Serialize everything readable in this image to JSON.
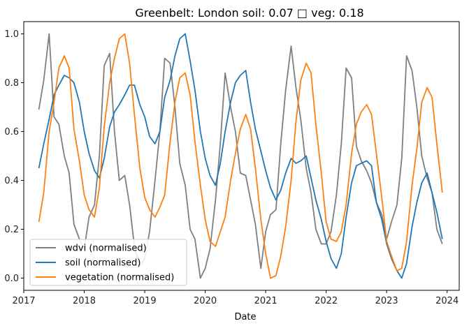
{
  "chart_data": {
    "type": "line",
    "title": "Greenbelt: London soil: 0.07 □ veg: 0.18",
    "xlabel": "Date",
    "ylabel": "",
    "xlim": [
      2017.0,
      2024.2
    ],
    "ylim": [
      -0.05,
      1.05
    ],
    "xticks": [
      2017,
      2018,
      2019,
      2020,
      2021,
      2022,
      2023,
      2024
    ],
    "xtick_labels": [
      "2017",
      "2018",
      "2019",
      "2020",
      "2021",
      "2022",
      "2023",
      "2024"
    ],
    "yticks": [
      0.0,
      0.2,
      0.4,
      0.6,
      0.8,
      1.0
    ],
    "ytick_labels": [
      "0.0",
      "0.2",
      "0.4",
      "0.6",
      "0.8",
      "1.0"
    ],
    "grid": false,
    "legend_position": "lower-left",
    "series": [
      {
        "name": "wdvi (normalised)",
        "color": "#7f7f7f",
        "x": [
          2017.25,
          2017.33,
          2017.42,
          2017.5,
          2017.58,
          2017.67,
          2017.75,
          2017.83,
          2017.92,
          2018.0,
          2018.08,
          2018.17,
          2018.25,
          2018.33,
          2018.42,
          2018.5,
          2018.58,
          2018.67,
          2018.75,
          2018.83,
          2018.92,
          2019.0,
          2019.08,
          2019.17,
          2019.25,
          2019.33,
          2019.42,
          2019.5,
          2019.58,
          2019.67,
          2019.75,
          2019.83,
          2019.92,
          2020.0,
          2020.08,
          2020.17,
          2020.25,
          2020.33,
          2020.42,
          2020.5,
          2020.58,
          2020.67,
          2020.75,
          2020.83,
          2020.92,
          2021.0,
          2021.08,
          2021.17,
          2021.25,
          2021.33,
          2021.42,
          2021.5,
          2021.58,
          2021.67,
          2021.75,
          2021.83,
          2021.92,
          2022.0,
          2022.08,
          2022.17,
          2022.25,
          2022.33,
          2022.42,
          2022.5,
          2022.58,
          2022.67,
          2022.75,
          2022.83,
          2022.92,
          2023.0,
          2023.08,
          2023.17,
          2023.25,
          2023.33,
          2023.42,
          2023.5,
          2023.58,
          2023.67,
          2023.75,
          2023.83,
          2023.92
        ],
        "y": [
          0.69,
          0.81,
          1.0,
          0.66,
          0.63,
          0.5,
          0.43,
          0.22,
          0.16,
          0.12,
          0.25,
          0.3,
          0.5,
          0.87,
          0.92,
          0.6,
          0.4,
          0.42,
          0.3,
          0.13,
          0.05,
          0.08,
          0.19,
          0.4,
          0.6,
          0.9,
          0.88,
          0.7,
          0.47,
          0.38,
          0.2,
          0.16,
          0.0,
          0.04,
          0.12,
          0.32,
          0.55,
          0.84,
          0.7,
          0.6,
          0.43,
          0.42,
          0.32,
          0.22,
          0.04,
          0.19,
          0.26,
          0.28,
          0.55,
          0.77,
          0.95,
          0.78,
          0.65,
          0.45,
          0.35,
          0.2,
          0.14,
          0.14,
          0.19,
          0.34,
          0.55,
          0.86,
          0.82,
          0.54,
          0.48,
          0.44,
          0.39,
          0.31,
          0.26,
          0.16,
          0.23,
          0.3,
          0.49,
          0.91,
          0.85,
          0.7,
          0.5,
          0.41,
          0.35,
          0.2,
          0.14
        ]
      },
      {
        "name": "soil (normalised)",
        "color": "#1f77b4",
        "x": [
          2017.25,
          2017.33,
          2017.42,
          2017.5,
          2017.58,
          2017.67,
          2017.75,
          2017.83,
          2017.92,
          2018.0,
          2018.08,
          2018.17,
          2018.25,
          2018.33,
          2018.42,
          2018.5,
          2018.58,
          2018.67,
          2018.75,
          2018.83,
          2018.92,
          2019.0,
          2019.08,
          2019.17,
          2019.25,
          2019.33,
          2019.42,
          2019.5,
          2019.58,
          2019.67,
          2019.75,
          2019.83,
          2019.92,
          2020.0,
          2020.08,
          2020.17,
          2020.25,
          2020.33,
          2020.42,
          2020.5,
          2020.58,
          2020.67,
          2020.75,
          2020.83,
          2020.92,
          2021.0,
          2021.08,
          2021.17,
          2021.25,
          2021.33,
          2021.42,
          2021.5,
          2021.58,
          2021.67,
          2021.75,
          2021.83,
          2021.92,
          2022.0,
          2022.08,
          2022.17,
          2022.25,
          2022.33,
          2022.42,
          2022.5,
          2022.58,
          2022.67,
          2022.75,
          2022.83,
          2022.92,
          2023.0,
          2023.08,
          2023.17,
          2023.25,
          2023.33,
          2023.42,
          2023.5,
          2023.58,
          2023.67,
          2023.75,
          2023.83,
          2023.92
        ],
        "y": [
          0.45,
          0.55,
          0.65,
          0.75,
          0.79,
          0.83,
          0.82,
          0.8,
          0.72,
          0.6,
          0.51,
          0.44,
          0.41,
          0.49,
          0.62,
          0.68,
          0.71,
          0.75,
          0.79,
          0.79,
          0.71,
          0.66,
          0.58,
          0.55,
          0.6,
          0.74,
          0.81,
          0.91,
          0.98,
          1.0,
          0.89,
          0.77,
          0.6,
          0.49,
          0.42,
          0.38,
          0.47,
          0.6,
          0.72,
          0.8,
          0.83,
          0.85,
          0.72,
          0.61,
          0.52,
          0.44,
          0.37,
          0.32,
          0.36,
          0.43,
          0.49,
          0.47,
          0.48,
          0.5,
          0.41,
          0.32,
          0.24,
          0.15,
          0.08,
          0.04,
          0.1,
          0.25,
          0.39,
          0.46,
          0.47,
          0.48,
          0.46,
          0.31,
          0.24,
          0.14,
          0.08,
          0.03,
          0.0,
          0.06,
          0.21,
          0.31,
          0.39,
          0.43,
          0.35,
          0.27,
          0.16
        ]
      },
      {
        "name": "vegetation (normalised)",
        "color": "#ff7f0e",
        "x": [
          2017.25,
          2017.33,
          2017.42,
          2017.5,
          2017.58,
          2017.67,
          2017.75,
          2017.83,
          2017.92,
          2018.0,
          2018.08,
          2018.17,
          2018.25,
          2018.33,
          2018.42,
          2018.5,
          2018.58,
          2018.67,
          2018.75,
          2018.83,
          2018.92,
          2019.0,
          2019.08,
          2019.17,
          2019.25,
          2019.33,
          2019.42,
          2019.5,
          2019.58,
          2019.67,
          2019.75,
          2019.83,
          2019.92,
          2020.0,
          2020.08,
          2020.17,
          2020.25,
          2020.33,
          2020.42,
          2020.5,
          2020.58,
          2020.67,
          2020.75,
          2020.83,
          2020.92,
          2021.0,
          2021.08,
          2021.17,
          2021.25,
          2021.33,
          2021.42,
          2021.5,
          2021.58,
          2021.67,
          2021.75,
          2021.83,
          2021.92,
          2022.0,
          2022.08,
          2022.17,
          2022.25,
          2022.33,
          2022.42,
          2022.5,
          2022.58,
          2022.67,
          2022.75,
          2022.83,
          2022.92,
          2023.0,
          2023.08,
          2023.17,
          2023.25,
          2023.33,
          2023.42,
          2023.5,
          2023.58,
          2023.67,
          2023.75,
          2023.83,
          2023.92
        ],
        "y": [
          0.23,
          0.35,
          0.6,
          0.72,
          0.86,
          0.91,
          0.86,
          0.61,
          0.48,
          0.34,
          0.28,
          0.25,
          0.37,
          0.62,
          0.8,
          0.9,
          0.98,
          1.0,
          0.88,
          0.67,
          0.45,
          0.33,
          0.28,
          0.25,
          0.29,
          0.34,
          0.56,
          0.72,
          0.82,
          0.84,
          0.75,
          0.56,
          0.38,
          0.24,
          0.15,
          0.13,
          0.19,
          0.25,
          0.4,
          0.51,
          0.61,
          0.67,
          0.61,
          0.45,
          0.24,
          0.1,
          0.0,
          0.01,
          0.09,
          0.21,
          0.4,
          0.64,
          0.81,
          0.88,
          0.84,
          0.63,
          0.43,
          0.23,
          0.16,
          0.15,
          0.19,
          0.3,
          0.51,
          0.63,
          0.68,
          0.71,
          0.67,
          0.51,
          0.33,
          0.15,
          0.09,
          0.03,
          0.04,
          0.15,
          0.38,
          0.53,
          0.72,
          0.78,
          0.74,
          0.55,
          0.35
        ]
      }
    ]
  }
}
